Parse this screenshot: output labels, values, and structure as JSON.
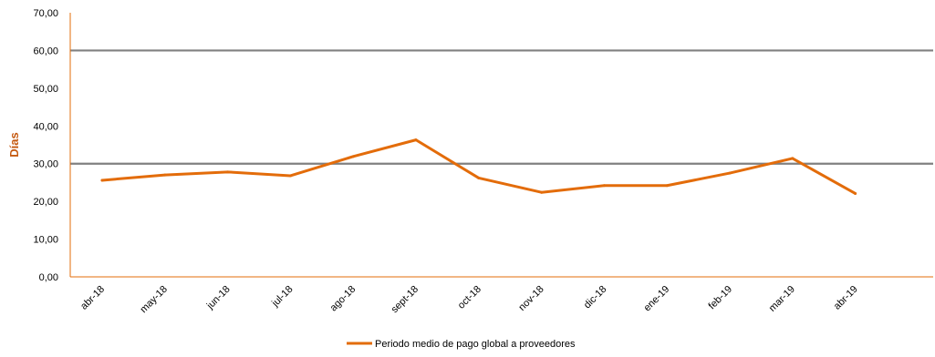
{
  "chart_data": {
    "type": "line",
    "title": "",
    "xlabel": "",
    "ylabel": "Días",
    "categories": [
      "abr-18",
      "may-18",
      "jun-18",
      "jul-18",
      "ago-18",
      "sept-18",
      "oct-18",
      "nov-18",
      "dic-18",
      "ene-19",
      "feb-19",
      "mar-19",
      "abr-19"
    ],
    "y_tick_labels": [
      "0,00",
      "10,00",
      "20,00",
      "30,00",
      "40,00",
      "50,00",
      "60,00",
      "70,00"
    ],
    "ylim": [
      0,
      70
    ],
    "series": [
      {
        "name": "Periodo medio de pago global a proveedores",
        "color": "#E36C0A",
        "values": [
          25.6,
          27.0,
          27.8,
          26.8,
          31.9,
          36.3,
          26.2,
          22.4,
          24.2,
          24.2,
          27.5,
          31.4,
          22.1
        ]
      }
    ],
    "reference_lines": [
      {
        "value": 60,
        "color": "#808080"
      },
      {
        "value": 30,
        "color": "#808080"
      }
    ],
    "axis_color": "#E36C0A",
    "ylabel_color": "#C55A11",
    "grid": false,
    "legend_position": "bottom"
  }
}
